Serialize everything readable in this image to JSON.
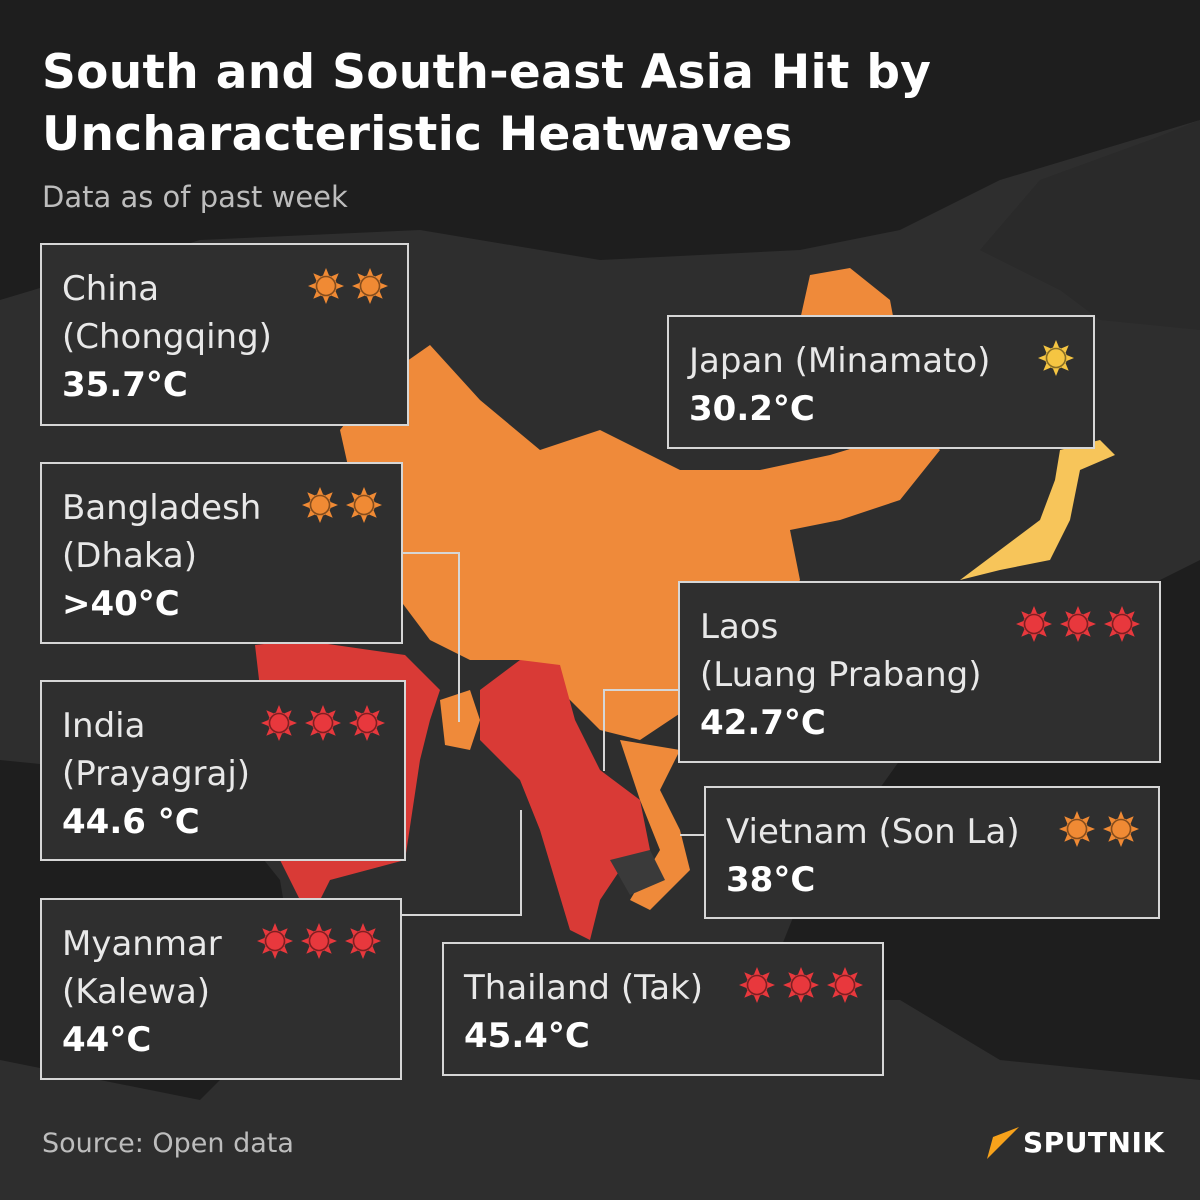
{
  "title": "South and South-east Asia Hit by Uncharacteristic Heatwaves",
  "subtitle": "Data as of past week",
  "source": "Source: Open data",
  "logo_text": "SPUTNIK",
  "colors": {
    "background": "#1e1e1e",
    "land": "#2e2e2e",
    "china": "#ef8a3a",
    "hot": "#d93a36",
    "japan": "#f7c55a",
    "sun_one": "#f5c542",
    "sun_two": "#f08a34",
    "sun_three": "#e8383d"
  },
  "locations": [
    {
      "country": "China",
      "city": "(Chongqing)",
      "temp": "35.7°C",
      "suns": 2
    },
    {
      "country": "Japan",
      "city": "(Minamato)",
      "temp": "30.2°C",
      "suns": 1
    },
    {
      "country": "Bangladesh",
      "city": "(Dhaka)",
      "temp": ">40°C",
      "suns": 2
    },
    {
      "country": "India",
      "city": "(Prayagraj)",
      "temp": "44.6 °C",
      "suns": 3
    },
    {
      "country": "Myanmar",
      "city": "(Kalewa)",
      "temp": "44°C",
      "suns": 3
    },
    {
      "country": "Thailand",
      "city": "(Tak)",
      "temp": "45.4°C",
      "suns": 3
    },
    {
      "country": "Laos",
      "city": "(Luang Prabang)",
      "temp": "42.7°C",
      "suns": 3
    },
    {
      "country": "Vietnam",
      "city": "(Son La)",
      "temp": "38°C",
      "suns": 2
    }
  ]
}
